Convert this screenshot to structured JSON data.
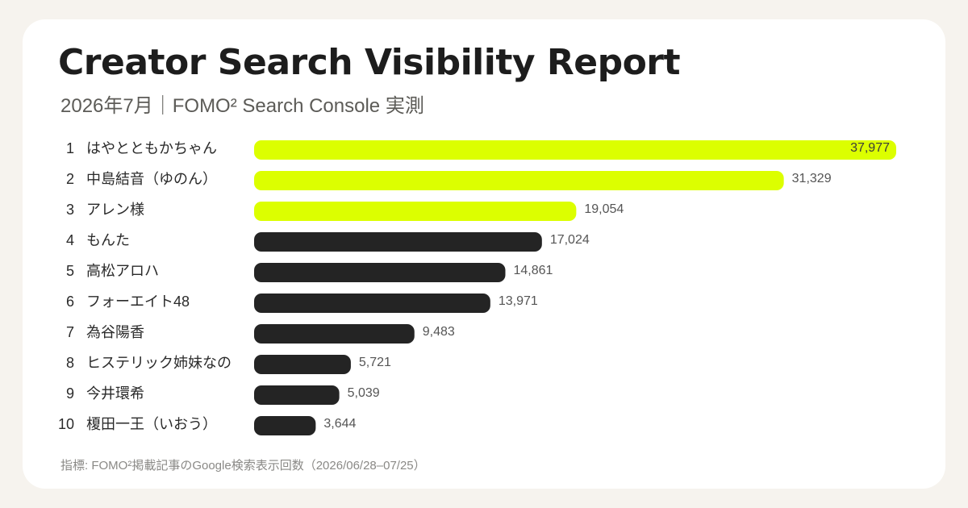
{
  "header": {
    "title": "Creator Search Visibility Report",
    "subtitle": "2026年7月｜FOMO² Search Console 実測"
  },
  "footnote": "指標: FOMO²掲載記事のGoogle検索表示回数（2026/06/28–07/25）",
  "colors": {
    "background": "#f6f3ee",
    "card": "#ffffff",
    "highlight": "#dcff00",
    "bar": "#242424"
  },
  "chart_data": {
    "type": "bar",
    "orientation": "horizontal",
    "ranks": [
      "1",
      "2",
      "3",
      "4",
      "5",
      "6",
      "7",
      "8",
      "9",
      "10"
    ],
    "categories": [
      "はやとともかちゃん",
      "中島結音（ゆのん）",
      "アレン様",
      "もんた",
      "高松アロハ",
      "フォーエイト48",
      "為谷陽香",
      "ヒステリック姉妹なの",
      "今井環希",
      "榎田一王（いおう）"
    ],
    "values": [
      37977,
      31329,
      19054,
      17024,
      14861,
      13971,
      9483,
      5721,
      5039,
      3644
    ],
    "value_labels": [
      "37,977",
      "31,329",
      "19,054",
      "17,024",
      "14,861",
      "13,971",
      "9,483",
      "5,721",
      "5,039",
      "3,644"
    ],
    "highlight_top": 3,
    "xlim": [
      0,
      37977
    ],
    "grid": false,
    "legend": "none"
  }
}
